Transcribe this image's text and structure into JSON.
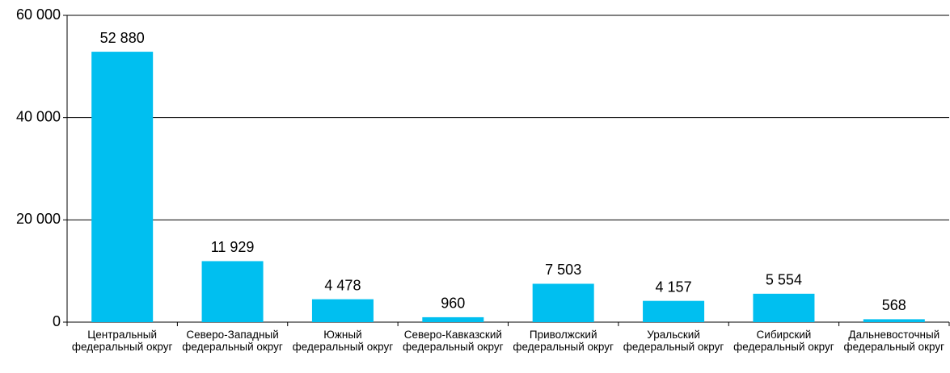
{
  "chart_data": {
    "type": "bar",
    "categories": [
      "Центральный федеральный округ",
      "Северо-Западный федеральный округ",
      "Южный федеральный округ",
      "Северо-Кавказский федеральный округ",
      "Приволжский федеральный округ",
      "Уральский федеральный округ",
      "Сибирский федеральный округ",
      "Дальневосточный федеральный округ"
    ],
    "values": [
      52880,
      11929,
      4478,
      960,
      7503,
      4157,
      5554,
      568
    ],
    "value_labels": [
      "52 880",
      "11 929",
      "4 478",
      "960",
      "7 503",
      "4 157",
      "5 554",
      "568"
    ],
    "color": "#00bff0",
    "ylim": [
      0,
      60000
    ],
    "yticks": [
      0,
      {
        "value": 20000,
        "label": "20 000"
      },
      {
        "value": 40000,
        "label": "40 000"
      },
      {
        "value": 60000,
        "label": "60 000"
      }
    ],
    "grid": true
  }
}
